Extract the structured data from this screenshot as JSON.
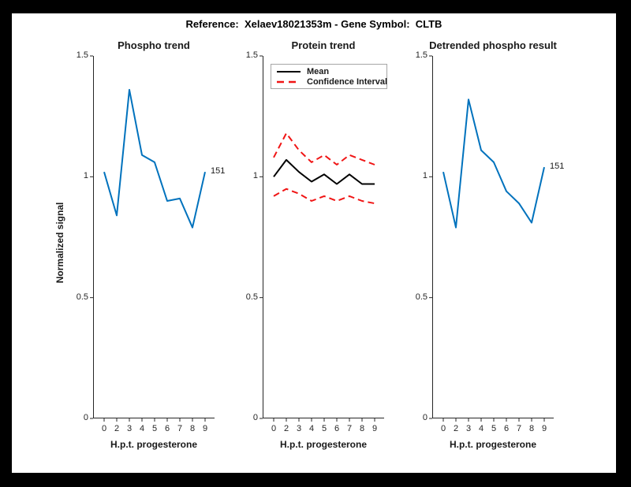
{
  "figure_title": "Reference:  Xelaev18021353m - Gene Symbol:  CLTB",
  "colors": {
    "blue": "#0072BD",
    "red": "#f01515",
    "black": "#000000",
    "axis": "#262626"
  },
  "y_axis": {
    "label": "Normalized signal",
    "tick_labels": [
      "1.5",
      "1",
      "0.5",
      "0"
    ],
    "tick_values": [
      1.5,
      1,
      0.5,
      0
    ],
    "range": [
      0,
      1.5
    ]
  },
  "x_axis": {
    "label": "H.p.t. progesterone",
    "tick_labels": [
      "0",
      "2",
      "3",
      "4",
      "5",
      "6",
      "7",
      "8",
      "9"
    ]
  },
  "chart_data": [
    {
      "type": "line",
      "title": "Phospho trend",
      "xlabel": "H.p.t. progesterone",
      "ylabel": "Normalized signal",
      "ylim": [
        0,
        1.5
      ],
      "yticks": [
        0,
        0.5,
        1,
        1.5
      ],
      "categories": [
        "0",
        "2",
        "3",
        "4",
        "5",
        "6",
        "7",
        "8",
        "9"
      ],
      "grid": false,
      "end_label": "151",
      "end_label_value": 1.02,
      "series": [
        {
          "name": "phospho-signal",
          "color": "blue",
          "style": "solid",
          "values": [
            1.02,
            0.84,
            1.36,
            1.09,
            1.06,
            0.9,
            0.91,
            0.79,
            1.02
          ]
        }
      ]
    },
    {
      "type": "line",
      "title": "Protein trend",
      "xlabel": "H.p.t. progesterone",
      "ylabel": "",
      "ylim": [
        0,
        1.5
      ],
      "yticks": [
        0,
        0.5,
        1,
        1.5
      ],
      "categories": [
        "0",
        "2",
        "3",
        "4",
        "5",
        "6",
        "7",
        "8",
        "9"
      ],
      "grid": false,
      "legend": [
        {
          "label": "Mean",
          "color": "black",
          "style": "solid"
        },
        {
          "label": "Confidence Interval",
          "color": "red",
          "style": "dashed"
        }
      ],
      "series": [
        {
          "name": "mean",
          "color": "black",
          "style": "solid",
          "values": [
            1.0,
            1.07,
            1.02,
            0.98,
            1.01,
            0.97,
            1.01,
            0.97,
            0.97
          ]
        },
        {
          "name": "ci-upper",
          "color": "red",
          "style": "dashed",
          "values": [
            1.08,
            1.18,
            1.11,
            1.06,
            1.09,
            1.05,
            1.09,
            1.07,
            1.05
          ]
        },
        {
          "name": "ci-lower",
          "color": "red",
          "style": "dashed",
          "values": [
            0.92,
            0.95,
            0.93,
            0.9,
            0.92,
            0.9,
            0.92,
            0.9,
            0.89
          ]
        }
      ]
    },
    {
      "type": "line",
      "title": "Detrended phospho result",
      "xlabel": "H.p.t. progesterone",
      "ylabel": "",
      "ylim": [
        0,
        1.5
      ],
      "yticks": [
        0,
        0.5,
        1,
        1.5
      ],
      "categories": [
        "0",
        "2",
        "3",
        "4",
        "5",
        "6",
        "7",
        "8",
        "9"
      ],
      "grid": false,
      "end_label": "151",
      "end_label_value": 1.04,
      "series": [
        {
          "name": "detrended-phospho-signal",
          "color": "blue",
          "style": "solid",
          "values": [
            1.02,
            0.79,
            1.32,
            1.11,
            1.06,
            0.94,
            0.89,
            0.81,
            1.04
          ]
        }
      ]
    }
  ]
}
